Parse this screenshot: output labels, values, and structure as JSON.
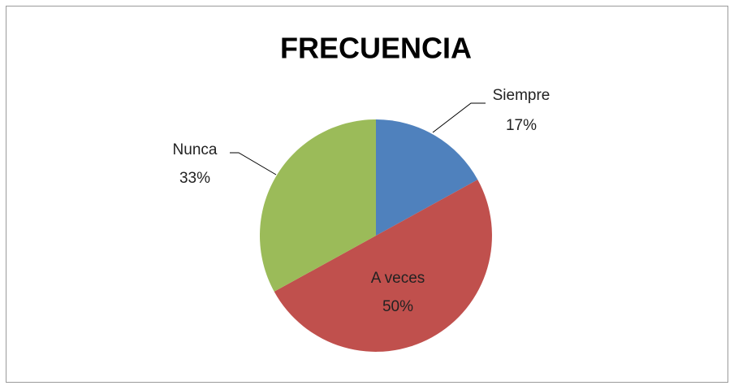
{
  "chart_data": {
    "type": "pie",
    "title": "FRECUENCIA",
    "categories": [
      "Siempre",
      "A veces",
      "Nunca"
    ],
    "values": [
      17,
      50,
      33
    ],
    "value_labels": [
      "17%",
      "50%",
      "33%"
    ],
    "colors": [
      "#4f81bd",
      "#c0504d",
      "#9bbb59"
    ]
  }
}
